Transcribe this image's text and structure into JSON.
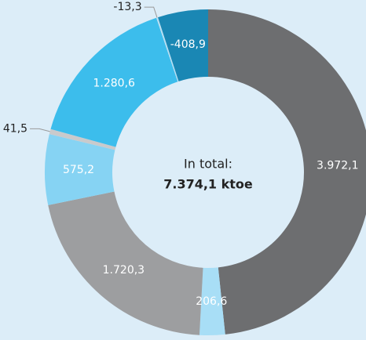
{
  "chart_data": {
    "type": "donut",
    "categories": [
      null,
      null,
      null,
      null,
      null,
      null,
      null,
      null
    ],
    "values": [
      3972.1,
      206.6,
      1720.3,
      575.2,
      41.5,
      1280.6,
      -13.3,
      -408.9
    ],
    "value_labels": [
      "3.972,1",
      "206,6",
      "1.720,3",
      "575,2",
      "41,5",
      "1.280,6",
      "-13,3",
      "-408,9"
    ],
    "colors": [
      "#6d6e70",
      "#a8def6",
      "#9d9ea0",
      "#86d3f3",
      "#c9cacc",
      "#3cbdec",
      "#b9dff2",
      "#1a87b4"
    ],
    "center_text": [
      "In total:",
      "7.374,1 ktoe"
    ]
  }
}
